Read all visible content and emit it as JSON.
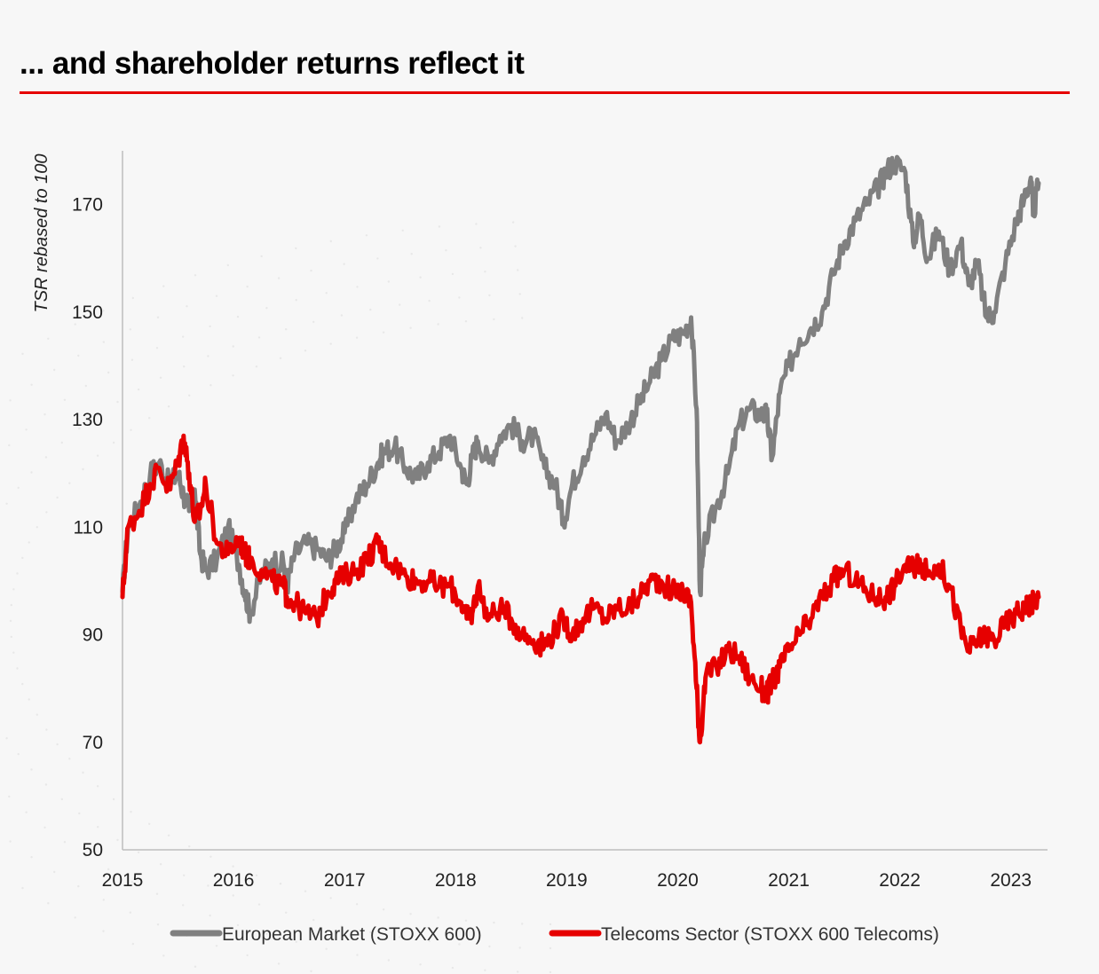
{
  "header": {
    "title": "... and shareholder returns reflect it"
  },
  "colors": {
    "accent": "#e60000",
    "european_market": "#808080",
    "telecoms": "#e60000",
    "axis": "#bdbdbd"
  },
  "chart_data": {
    "type": "line",
    "title": "",
    "xlabel": "",
    "ylabel": "TSR rebased to 100",
    "xlim": [
      2015.0,
      2023.33
    ],
    "ylim": [
      50,
      180
    ],
    "yticks": [
      50,
      70,
      90,
      110,
      130,
      150,
      170
    ],
    "xticks": [
      2015,
      2016,
      2017,
      2018,
      2019,
      2020,
      2021,
      2022,
      2023
    ],
    "grid": false,
    "legend_position": "bottom",
    "series": [
      {
        "name": "European Market (STOXX 600)",
        "color": "#808080",
        "x": [
          2015.0,
          2015.05,
          2015.15,
          2015.25,
          2015.33,
          2015.42,
          2015.5,
          2015.55,
          2015.6,
          2015.65,
          2015.7,
          2015.75,
          2015.85,
          2015.95,
          2016.05,
          2016.1,
          2016.15,
          2016.25,
          2016.35,
          2016.45,
          2016.48,
          2016.55,
          2016.65,
          2016.75,
          2016.85,
          2016.92,
          2017.0,
          2017.1,
          2017.2,
          2017.3,
          2017.35,
          2017.45,
          2017.55,
          2017.65,
          2017.75,
          2017.85,
          2017.95,
          2018.05,
          2018.1,
          2018.15,
          2018.2,
          2018.3,
          2018.4,
          2018.5,
          2018.6,
          2018.7,
          2018.8,
          2018.9,
          2018.97,
          2019.05,
          2019.15,
          2019.25,
          2019.35,
          2019.45,
          2019.55,
          2019.65,
          2019.75,
          2019.85,
          2019.95,
          2020.05,
          2020.12,
          2020.17,
          2020.2,
          2020.25,
          2020.35,
          2020.45,
          2020.55,
          2020.65,
          2020.75,
          2020.8,
          2020.85,
          2020.92,
          2021.0,
          2021.1,
          2021.2,
          2021.3,
          2021.4,
          2021.5,
          2021.6,
          2021.7,
          2021.8,
          2021.87,
          2021.95,
          2022.05,
          2022.12,
          2022.18,
          2022.25,
          2022.35,
          2022.45,
          2022.55,
          2022.62,
          2022.7,
          2022.78,
          2022.85,
          2022.95,
          2023.05,
          2023.12,
          2023.18,
          2023.2,
          2023.25
        ],
        "values": [
          98,
          110,
          114,
          120,
          122,
          118,
          120,
          116,
          113,
          117,
          105,
          102,
          104,
          110,
          103,
          98,
          94,
          101,
          104,
          103,
          99,
          105,
          107,
          106,
          104,
          106,
          109,
          115,
          118,
          122,
          124,
          125,
          121,
          119,
          122,
          124,
          127,
          121,
          118,
          123,
          126,
          122,
          127,
          129,
          126,
          127,
          121,
          118,
          111,
          118,
          123,
          127,
          131,
          126,
          129,
          133,
          137,
          141,
          145,
          146,
          149,
          132,
          98,
          108,
          114,
          120,
          129,
          132,
          131,
          131,
          123,
          135,
          140,
          145,
          147,
          150,
          157,
          163,
          167,
          170,
          173,
          176,
          178,
          176,
          163,
          168,
          160,
          165,
          158,
          163,
          155,
          159,
          149,
          150,
          159,
          167,
          171,
          175,
          168,
          174
        ]
      },
      {
        "name": "Telecoms Sector (STOXX 600 Telecoms)",
        "color": "#e60000",
        "x": [
          2015.0,
          2015.05,
          2015.15,
          2015.25,
          2015.33,
          2015.42,
          2015.5,
          2015.55,
          2015.6,
          2015.65,
          2015.7,
          2015.75,
          2015.85,
          2015.95,
          2016.05,
          2016.1,
          2016.15,
          2016.25,
          2016.35,
          2016.45,
          2016.48,
          2016.55,
          2016.65,
          2016.75,
          2016.85,
          2016.92,
          2017.0,
          2017.1,
          2017.2,
          2017.3,
          2017.35,
          2017.45,
          2017.55,
          2017.65,
          2017.75,
          2017.85,
          2017.95,
          2018.05,
          2018.1,
          2018.15,
          2018.2,
          2018.3,
          2018.4,
          2018.5,
          2018.6,
          2018.7,
          2018.8,
          2018.9,
          2018.97,
          2019.05,
          2019.15,
          2019.25,
          2019.35,
          2019.45,
          2019.55,
          2019.65,
          2019.75,
          2019.85,
          2019.95,
          2020.05,
          2020.12,
          2020.17,
          2020.2,
          2020.25,
          2020.35,
          2020.45,
          2020.55,
          2020.65,
          2020.75,
          2020.8,
          2020.85,
          2020.92,
          2021.0,
          2021.1,
          2021.2,
          2021.3,
          2021.4,
          2021.5,
          2021.6,
          2021.7,
          2021.8,
          2021.87,
          2021.95,
          2022.05,
          2022.12,
          2022.18,
          2022.25,
          2022.35,
          2022.45,
          2022.55,
          2022.62,
          2022.7,
          2022.78,
          2022.85,
          2022.95,
          2023.05,
          2023.12,
          2023.18,
          2023.2,
          2023.25
        ],
        "values": [
          97,
          110,
          113,
          118,
          121,
          117,
          122,
          127,
          120,
          111,
          113,
          118,
          107,
          105,
          108,
          105,
          104,
          102,
          100,
          99,
          97,
          96,
          94,
          93,
          98,
          100,
          101,
          102,
          104,
          107,
          105,
          103,
          101,
          100,
          100,
          99,
          99,
          96,
          93,
          94,
          99,
          93,
          95,
          93,
          90,
          89,
          88,
          91,
          93,
          90,
          93,
          95,
          93,
          95,
          95,
          97,
          100,
          100,
          98,
          98,
          96,
          80,
          70,
          82,
          84,
          87,
          86,
          82,
          80,
          79,
          81,
          84,
          87,
          90,
          93,
          97,
          100,
          102,
          100,
          98,
          97,
          97,
          99,
          103,
          102,
          104,
          101,
          103,
          99,
          91,
          87,
          89,
          90,
          89,
          92,
          94,
          95,
          96,
          96,
          97
        ]
      }
    ]
  }
}
